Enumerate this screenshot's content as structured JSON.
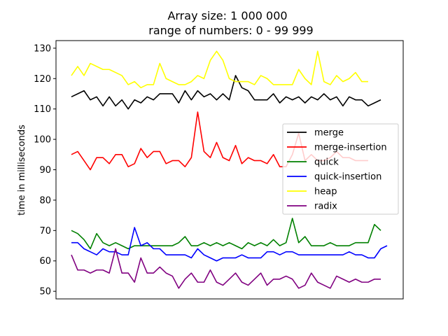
{
  "chart_data": {
    "type": "line",
    "title": [
      "Array size: 1 000 000",
      "range of numbers: 0 - 99 999"
    ],
    "xlabel": "",
    "ylabel": "time in milliseconds",
    "ylim": [
      47.5,
      132.5
    ],
    "yticks": [
      50,
      60,
      70,
      80,
      90,
      100,
      110,
      120,
      130
    ],
    "x_ticks_shown": false,
    "grid": false,
    "legend_placement": "center-right",
    "series": [
      {
        "name": "merge",
        "color": "#000000",
        "values": [
          114,
          115,
          116,
          113,
          114,
          111,
          114,
          111,
          113,
          110,
          113,
          112,
          114,
          113,
          115,
          115,
          115,
          112,
          116,
          113,
          116,
          114,
          115,
          113,
          115,
          113,
          121,
          117,
          116,
          113,
          113,
          113,
          115,
          112,
          114,
          113,
          114,
          112,
          114,
          113,
          115,
          113,
          114,
          111,
          114,
          113,
          113,
          111,
          112,
          113
        ]
      },
      {
        "name": "merge-insertion",
        "color": "#ff0000",
        "values": [
          95,
          96,
          93,
          90,
          94,
          94,
          92,
          95,
          95,
          91,
          92,
          97,
          94,
          96,
          96,
          92,
          93,
          93,
          91,
          94,
          109,
          96,
          94,
          99,
          94,
          93,
          98,
          92,
          94,
          93,
          93,
          92,
          95,
          91,
          91,
          95,
          102,
          93,
          95,
          93,
          93,
          94,
          96,
          94,
          94,
          93,
          93,
          93
        ]
      },
      {
        "name": "quick",
        "color": "#008000",
        "values": [
          70,
          69,
          67,
          64,
          69,
          66,
          65,
          66,
          65,
          64,
          65,
          65,
          65,
          65,
          65,
          65,
          65,
          66,
          68,
          65,
          65,
          66,
          65,
          66,
          65,
          66,
          65,
          64,
          66,
          65,
          66,
          65,
          67,
          65,
          66,
          74,
          66,
          68,
          65,
          65,
          65,
          66,
          65,
          65,
          65,
          66,
          66,
          66,
          72,
          70
        ]
      },
      {
        "name": "quick-insertion",
        "color": "#0000ff",
        "values": [
          66,
          66,
          64,
          63,
          62,
          64,
          63,
          63,
          62,
          62,
          71,
          65,
          66,
          64,
          64,
          62,
          62,
          62,
          62,
          61,
          64,
          62,
          61,
          60,
          61,
          61,
          61,
          62,
          61,
          61,
          61,
          63,
          63,
          62,
          63,
          63,
          62,
          62,
          62,
          62,
          62,
          62,
          62,
          62,
          63,
          62,
          62,
          61,
          61,
          64,
          65
        ]
      },
      {
        "name": "heap",
        "color": "#ffff00",
        "values": [
          121,
          124,
          121,
          125,
          124,
          123,
          123,
          122,
          121,
          118,
          119,
          117,
          118,
          118,
          125,
          120,
          119,
          118,
          118,
          119,
          121,
          120,
          126,
          129,
          126,
          120,
          119,
          119,
          119,
          118,
          121,
          120,
          118,
          118,
          118,
          118,
          123,
          120,
          118,
          129,
          119,
          118,
          121,
          119,
          120,
          122,
          119,
          119
        ]
      },
      {
        "name": "radix",
        "color": "#800080",
        "values": [
          62,
          57,
          57,
          56,
          57,
          57,
          56,
          64,
          56,
          56,
          53,
          61,
          56,
          56,
          58,
          56,
          55,
          51,
          54,
          56,
          53,
          53,
          57,
          53,
          52,
          54,
          56,
          53,
          52,
          54,
          56,
          52,
          54,
          54,
          55,
          54,
          51,
          52,
          56,
          53,
          52,
          51,
          55,
          54,
          53,
          54,
          53,
          53,
          54,
          54
        ]
      }
    ]
  }
}
